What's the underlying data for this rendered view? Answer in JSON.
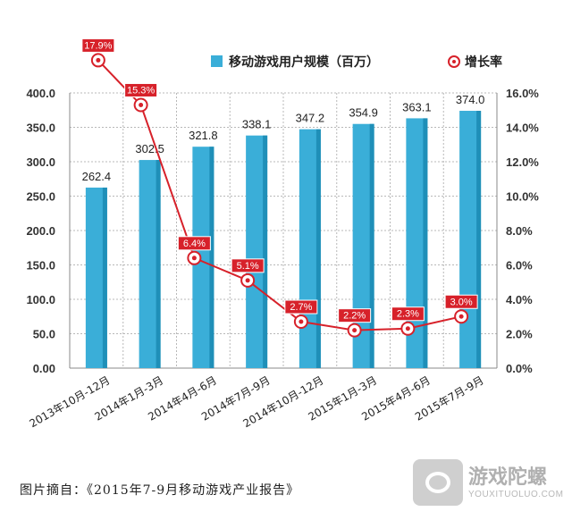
{
  "chart_data": {
    "type": "bar+line",
    "categories": [
      "2013年10月-12月",
      "2014年1月-3月",
      "2014年4月-6月",
      "2014年7月-9月",
      "2014年10月-12月",
      "2015年1月-3月",
      "2015年4月-6月",
      "2015年7月-9月"
    ],
    "series": [
      {
        "name": "移动游戏用户规模（百万）",
        "type": "bar",
        "axis": "left",
        "values": [
          262.4,
          302.5,
          321.8,
          338.1,
          347.2,
          354.9,
          363.1,
          374.0
        ],
        "labels": [
          "262.4",
          "302.5",
          "321.8",
          "338.1",
          "347.2",
          "354.9",
          "363.1",
          "374.0"
        ],
        "color": "#3aaed8"
      },
      {
        "name": "增长率",
        "type": "line",
        "axis": "right",
        "values": [
          17.9,
          15.3,
          6.4,
          5.1,
          2.7,
          2.2,
          2.3,
          3.0
        ],
        "labels": [
          "17.9%",
          "15.3%",
          "6.4%",
          "5.1%",
          "2.7%",
          "2.2%",
          "2.3%",
          "3.0%"
        ],
        "color": "#d7212a"
      }
    ],
    "left_axis": {
      "ylim": [
        0,
        400
      ],
      "ticks": [
        "0.00",
        "50.0",
        "100.0",
        "150.0",
        "200.0",
        "250.0",
        "300.0",
        "350.0",
        "400.0"
      ]
    },
    "right_axis": {
      "ylim": [
        0,
        16
      ],
      "ticks": [
        "0.0%",
        "2.0%",
        "4.0%",
        "6.0%",
        "8.0%",
        "10.0%",
        "12.0%",
        "14.0%",
        "16.0%"
      ]
    },
    "grid": true,
    "legend_position": "top-right"
  },
  "source_text": "图片摘自：《2015年7-9月移动游戏产业报告》",
  "watermark": {
    "name": "游戏陀螺",
    "url": "YOUXITUOLUO.COM"
  }
}
